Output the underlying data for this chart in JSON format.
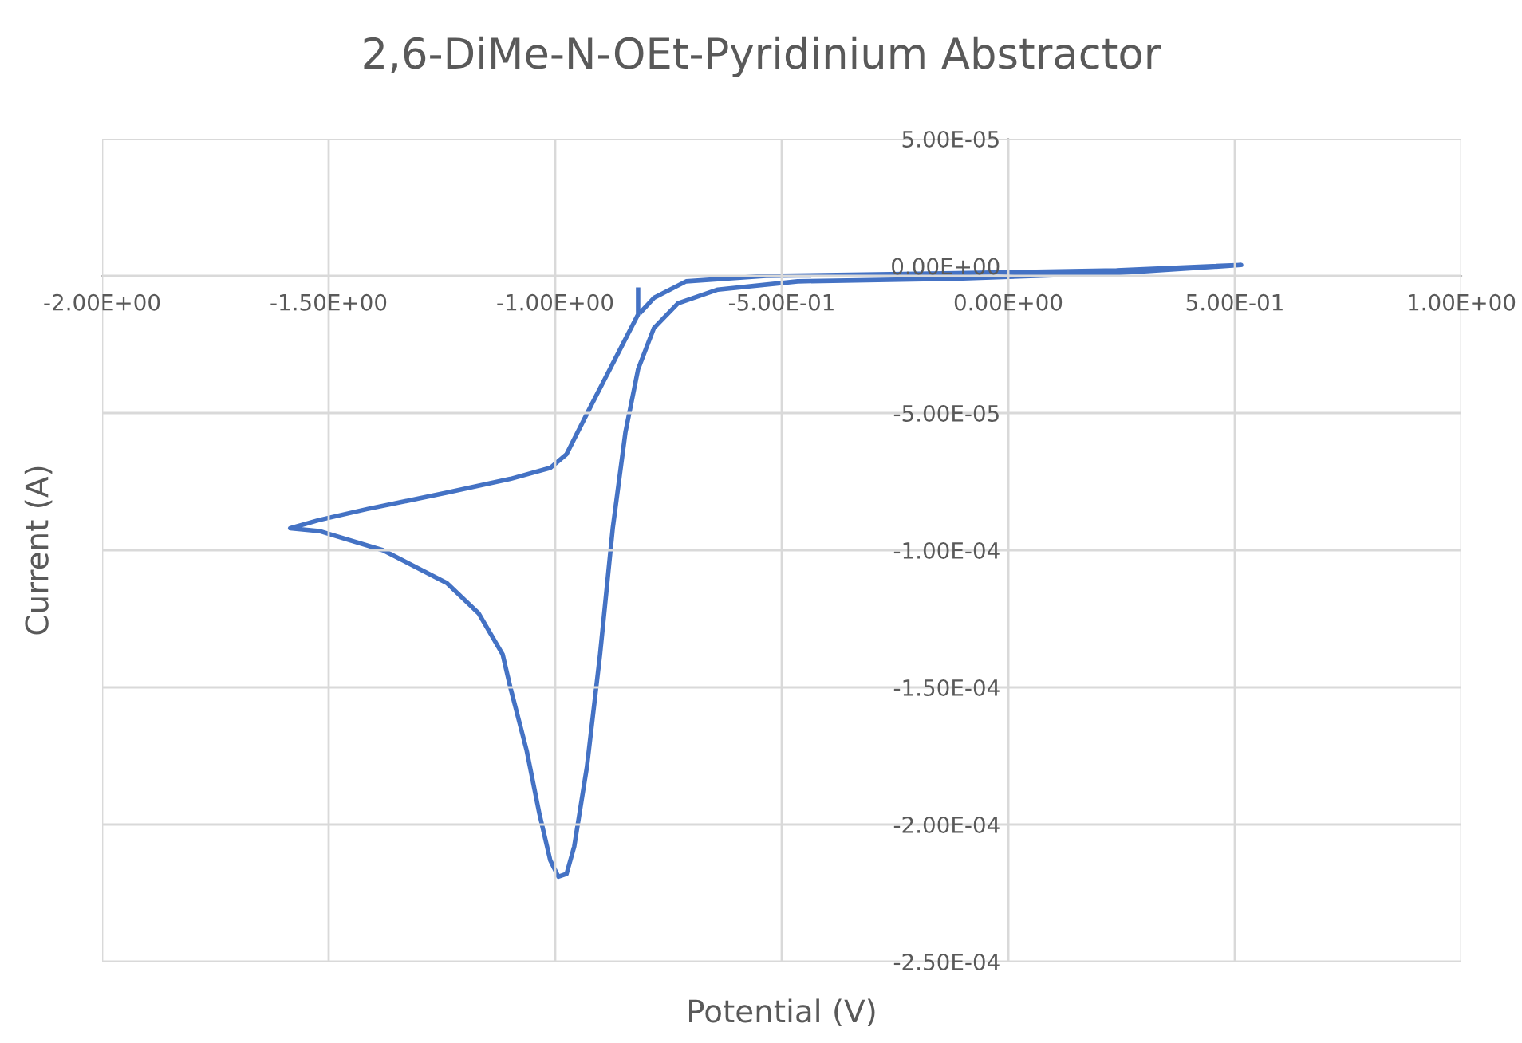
{
  "chart_data": {
    "type": "line",
    "title": "2,6-DiMe-N-OEt-Pyridinium Abstractor",
    "xlabel": "Potential (V)",
    "ylabel": "Current (A)",
    "series": [
      {
        "color": "#4472c4",
        "x": [
          -0.817,
          -0.817,
          -0.87,
          -0.923,
          -0.975,
          -1.011,
          -1.099,
          -1.239,
          -1.415,
          -1.521,
          -1.585,
          -1.521,
          -1.38,
          -1.239,
          -1.169,
          -1.116,
          -1.099,
          -1.063,
          -1.035,
          -1.011,
          -0.993,
          -0.975,
          -0.958,
          -0.93,
          -0.901,
          -0.873,
          -0.845,
          -0.817,
          -0.782,
          -0.729,
          -0.641,
          -0.465,
          -0.113,
          0.239,
          0.514,
          0.239,
          -0.113,
          -0.535,
          -0.711,
          -0.782,
          -0.81
        ],
        "values": [
          -5e-06,
          -1.4e-05,
          -3.1e-05,
          -4.8e-05,
          -6.5e-05,
          -7e-05,
          -7.4e-05,
          -7.9e-05,
          -8.5e-05,
          -8.9e-05,
          -9.2e-05,
          -9.3e-05,
          -0.0001,
          -0.000112,
          -0.000123,
          -0.000138,
          -0.00015,
          -0.000173,
          -0.000196,
          -0.000213,
          -0.000219,
          -0.000218,
          -0.000208,
          -0.000179,
          -0.000138,
          -9.2e-05,
          -5.7e-05,
          -3.4e-05,
          -1.9e-05,
          -1e-05,
          -5e-06,
          -2e-06,
          -1e-06,
          1e-06,
          4e-06,
          2e-06,
          1e-06,
          0,
          -2e-06,
          -8e-06,
          -1.3e-05
        ]
      }
    ],
    "xlim": [
      -2,
      1
    ],
    "ylim": [
      -0.00025,
      5e-05
    ],
    "xticks": [
      {
        "value": -2,
        "label": "-2.00E+00"
      },
      {
        "value": -1.5,
        "label": "-1.50E+00"
      },
      {
        "value": -1,
        "label": "-1.00E+00"
      },
      {
        "value": -0.5,
        "label": "-5.00E-01"
      },
      {
        "value": 0,
        "label": "0.00E+00"
      },
      {
        "value": 0.5,
        "label": "5.00E-01"
      },
      {
        "value": 1,
        "label": "1.00E+00"
      }
    ],
    "yticks": [
      {
        "value": -0.00025,
        "label": "-2.50E-04"
      },
      {
        "value": -0.0002,
        "label": "-2.00E-04"
      },
      {
        "value": -0.00015,
        "label": "-1.50E-04"
      },
      {
        "value": -0.0001,
        "label": "-1.00E-04"
      },
      {
        "value": -5e-05,
        "label": "-5.00E-05"
      },
      {
        "value": 0,
        "label": "0.00E+00"
      },
      {
        "value": 5e-05,
        "label": "5.00E-05"
      }
    ],
    "grid": true,
    "marker": "none",
    "line_style": "solid"
  }
}
